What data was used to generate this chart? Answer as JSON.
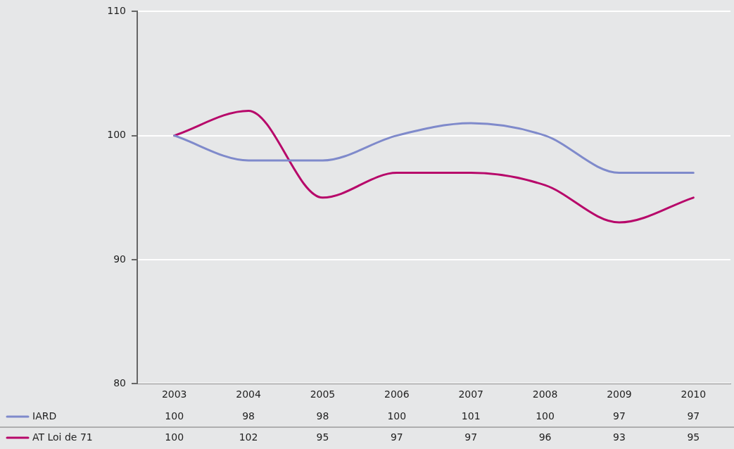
{
  "chart_data": {
    "type": "line",
    "categories": [
      "2003",
      "2004",
      "2005",
      "2006",
      "2007",
      "2008",
      "2009",
      "2010"
    ],
    "series": [
      {
        "name": "IARD",
        "color": "#7f8acb",
        "values": [
          100,
          98,
          98,
          100,
          101,
          100,
          97,
          97
        ]
      },
      {
        "name": "AT Loi de 71",
        "color": "#b7086a",
        "values": [
          100,
          102,
          95,
          97,
          97,
          96,
          93,
          95
        ]
      }
    ],
    "ylim": [
      80,
      110
    ],
    "yticks": [
      80,
      90,
      100,
      110
    ],
    "grid": "y",
    "legend": "bottom left",
    "data_labels": true,
    "marker": "none",
    "line_style": "solid"
  }
}
